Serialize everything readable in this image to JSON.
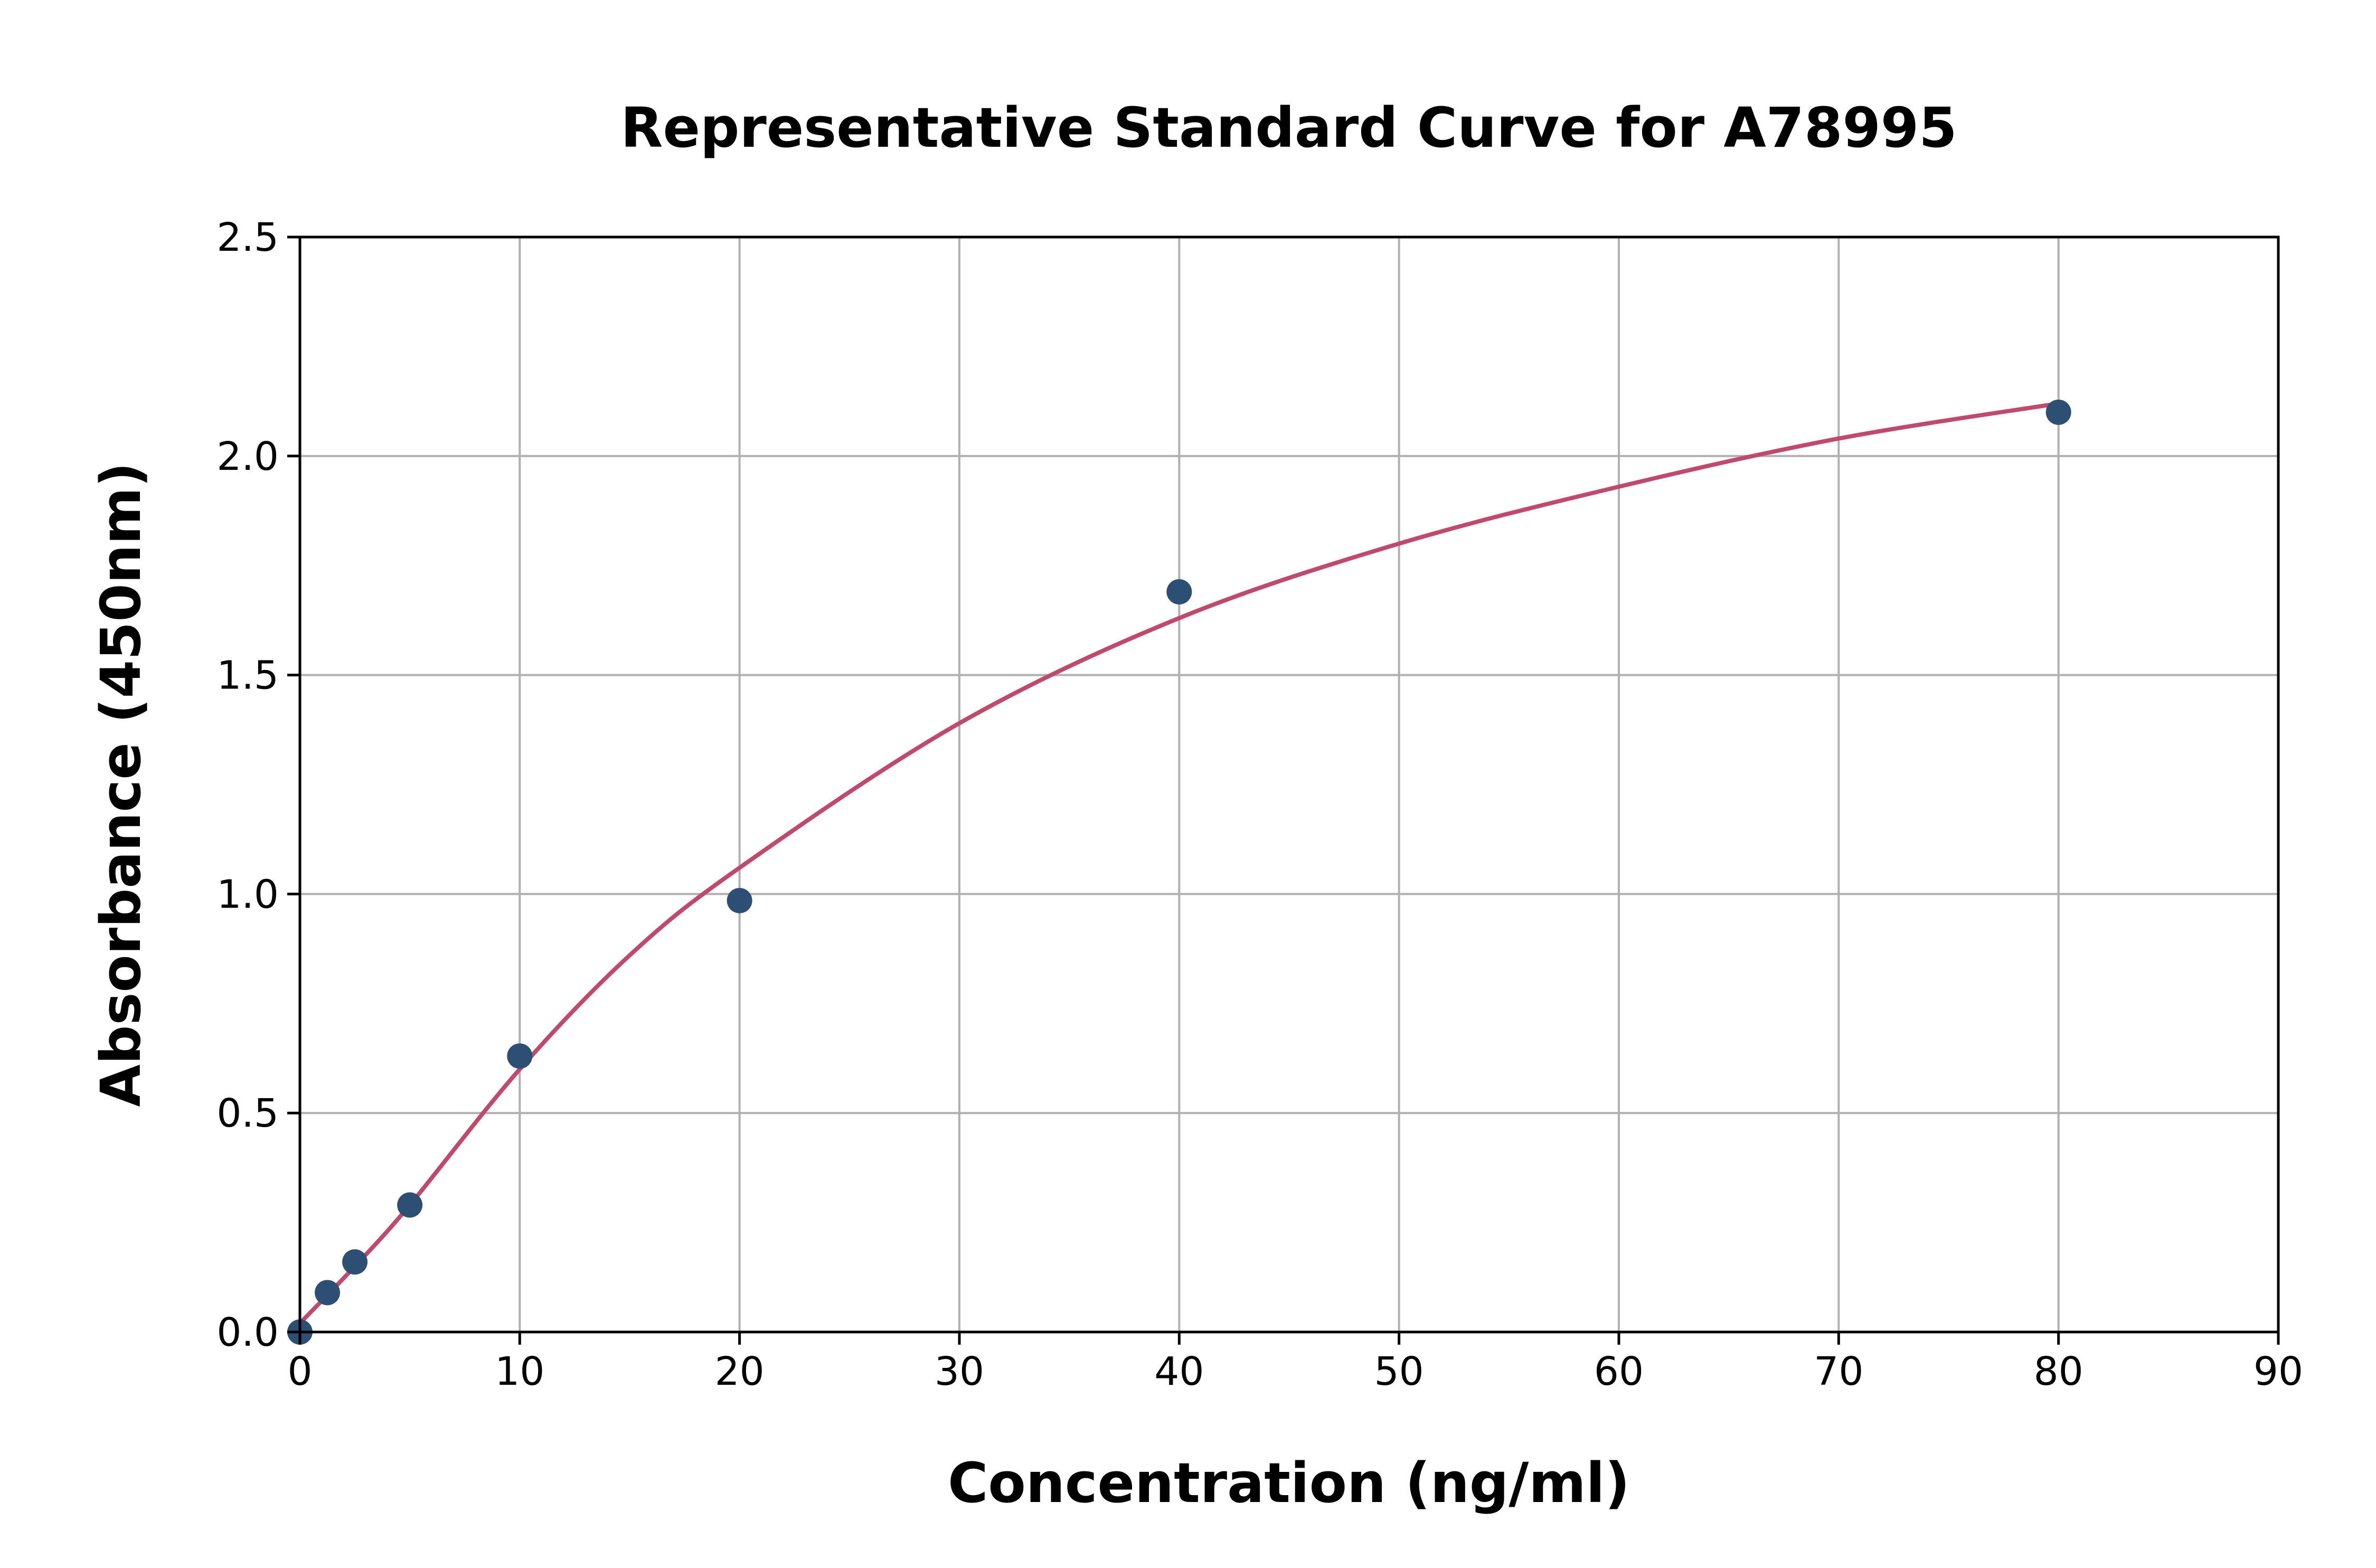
{
  "chart_data": {
    "type": "scatter",
    "title": "Representative Standard Curve for A78995",
    "xlabel": "Concentration (ng/ml)",
    "ylabel": "Absorbance (450nm)",
    "xlim": [
      0,
      90
    ],
    "ylim": [
      0,
      2.5
    ],
    "xticks": [
      "0",
      "10",
      "20",
      "30",
      "40",
      "50",
      "60",
      "70",
      "80",
      "90"
    ],
    "yticks": [
      "0.0",
      "0.5",
      "1.0",
      "1.5",
      "2.0",
      "2.5"
    ],
    "grid": true,
    "points": {
      "x": [
        0,
        1.25,
        2.5,
        5,
        10,
        20,
        40,
        80
      ],
      "y": [
        0.0,
        0.09,
        0.16,
        0.29,
        0.63,
        0.985,
        1.69,
        2.1
      ]
    },
    "fit_curve": {
      "x": [
        0,
        2.5,
        5,
        10,
        15,
        20,
        30,
        40,
        50,
        60,
        70,
        80
      ],
      "y": [
        0.02,
        0.15,
        0.29,
        0.6,
        0.86,
        1.06,
        1.39,
        1.63,
        1.8,
        1.93,
        2.04,
        2.12
      ]
    },
    "colors": {
      "points": "#2d4f73",
      "curve": "#c04a6e",
      "grid": "#b0b0b0"
    }
  }
}
